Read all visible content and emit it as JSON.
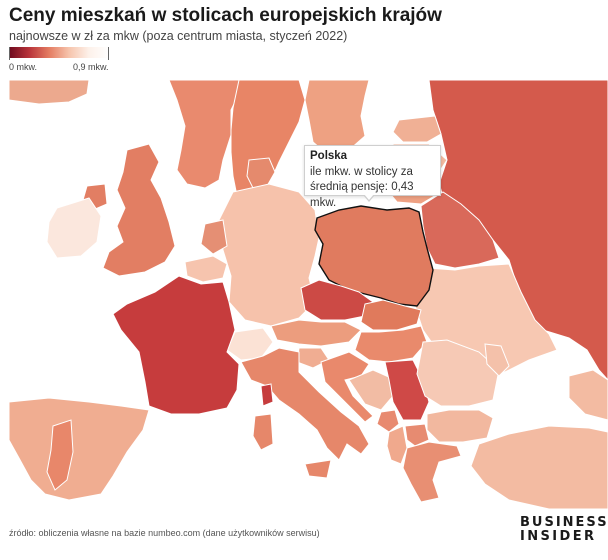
{
  "title": "Ceny mieszkań w stolicach europejskich krajów",
  "subtitle": "najnowsze w zł za mkw (poza centrum miasta, styczeń 2022)",
  "legend": {
    "min_label": "0 mkw.",
    "max_label": "0,9 mkw.",
    "min_value": 0,
    "max_value": 0.9,
    "color_low": "#6e0a1e",
    "color_high": "#ffffff"
  },
  "colors": {
    "sea": "#ffffff",
    "border": "#ffffff",
    "highlight_border": "#111111"
  },
  "tooltip": {
    "country": "Polska",
    "line1": "ile mkw. w stolicy za",
    "line2": "średnią pensję: 0,43 mkw."
  },
  "source": "źródło: obliczenia własne na bazie numbeo.com (dane użytkowników serwisu)",
  "brand": {
    "line1": "BUSINESS",
    "line2": "INSIDER"
  }
}
